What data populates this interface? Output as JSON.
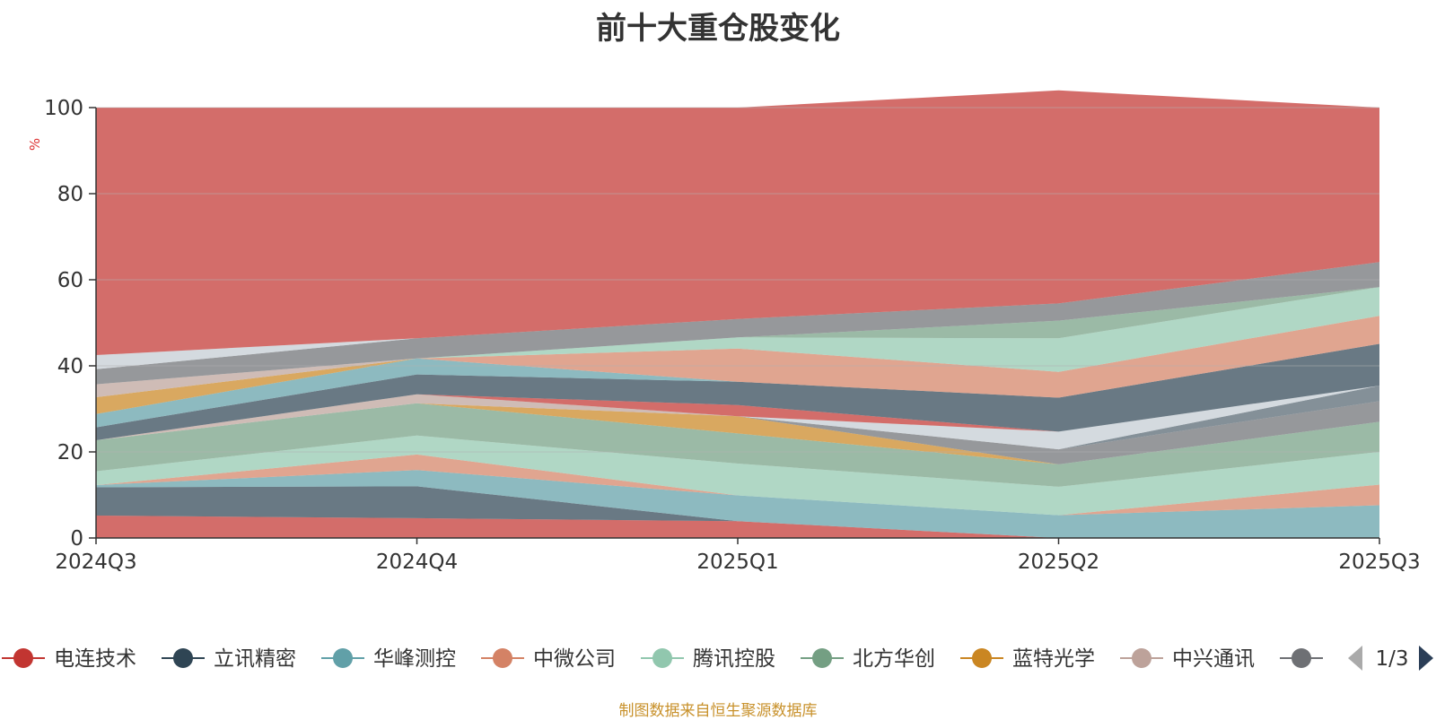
{
  "source_note": "制图数据来自恒生聚源数据库",
  "legend_page": "1/3",
  "colors": {
    "axis": "#333333",
    "grid": "#b0b0b0",
    "page_arrow_active": "#2b3e57",
    "page_arrow_inactive": "#aaaaaa",
    "source": "#c8912b",
    "unit": "#dd3333"
  },
  "chart_data": {
    "type": "area",
    "stacked": true,
    "title": "前十大重仓股变化",
    "ylabel": "%",
    "xlabel": "",
    "categories": [
      "2024Q3",
      "2024Q4",
      "2025Q1",
      "2025Q2",
      "2025Q3"
    ],
    "ylim": [
      0,
      100
    ],
    "yticks": [
      0,
      20,
      40,
      60,
      80,
      100
    ],
    "grid": true,
    "legend_position": "bottom",
    "series": [
      {
        "name": "电连技术",
        "color": "#c23531",
        "legend": true,
        "values": [
          5.2,
          4.6,
          3.9,
          0.0,
          0.0
        ]
      },
      {
        "name": "立讯精密",
        "color": "#2f4554",
        "legend": true,
        "values": [
          6.6,
          7.4,
          0.0,
          0.0,
          0.0
        ]
      },
      {
        "name": "华峰测控",
        "color": "#61a0a8",
        "legend": true,
        "values": [
          0.5,
          3.8,
          6.0,
          5.3,
          7.6
        ]
      },
      {
        "name": "中微公司",
        "color": "#d48265",
        "legend": true,
        "values": [
          0.0,
          3.6,
          0.0,
          0.0,
          4.8
        ]
      },
      {
        "name": "腾讯控股",
        "color": "#91c7ae",
        "legend": true,
        "values": [
          3.2,
          4.4,
          7.4,
          6.6,
          7.6
        ]
      },
      {
        "name": "北方华创",
        "color": "#749f83",
        "legend": true,
        "values": [
          7.2,
          7.5,
          7.0,
          5.2,
          7.0
        ]
      },
      {
        "name": "蓝特光学",
        "color": "#ca8622",
        "legend": true,
        "values": [
          0.0,
          0.0,
          4.0,
          0.0,
          0.0
        ]
      },
      {
        "name": "中兴通讯",
        "color": "#bda29a",
        "legend": true,
        "values": [
          0.0,
          2.1,
          0.0,
          0.0,
          0.0
        ]
      },
      {
        "name": "—",
        "color": "#6e7074",
        "legend": true,
        "values": [
          0.0,
          0.0,
          0.0,
          3.5,
          4.8
        ]
      },
      {
        "name": "—",
        "color": "#546570",
        "legend": false,
        "values": [
          0.0,
          0.0,
          0.0,
          0.0,
          3.6
        ]
      },
      {
        "name": "—",
        "color": "#c4ccd3",
        "legend": false,
        "values": [
          0.0,
          0.0,
          0.0,
          4.1,
          0.0
        ]
      },
      {
        "name": "—",
        "color": "#c23531",
        "legend": false,
        "values": [
          0.0,
          0.0,
          2.6,
          0.0,
          0.0
        ]
      },
      {
        "name": "—",
        "color": "#2f4554",
        "legend": false,
        "values": [
          3.0,
          4.6,
          5.4,
          7.9,
          9.7
        ]
      },
      {
        "name": "—",
        "color": "#61a0a8",
        "legend": false,
        "values": [
          3.1,
          3.7,
          0.0,
          0.0,
          0.0
        ]
      },
      {
        "name": "—",
        "color": "#d48265",
        "legend": false,
        "values": [
          0.0,
          0.0,
          7.7,
          6.0,
          6.5
        ]
      },
      {
        "name": "—",
        "color": "#ca8622",
        "legend": false,
        "values": [
          3.9,
          0.0,
          0.0,
          0.0,
          0.0
        ]
      },
      {
        "name": "—",
        "color": "#bda29a",
        "legend": false,
        "values": [
          3.0,
          0.0,
          0.0,
          0.0,
          0.0
        ]
      },
      {
        "name": "—",
        "color": "#91c7ae",
        "legend": false,
        "values": [
          0.0,
          0.0,
          2.6,
          7.8,
          6.7
        ]
      },
      {
        "name": "—",
        "color": "#749f83",
        "legend": false,
        "values": [
          0.0,
          0.0,
          0.0,
          4.1,
          0.0
        ]
      },
      {
        "name": "—",
        "color": "#6e7074",
        "legend": false,
        "values": [
          3.5,
          4.7,
          4.3,
          4.0,
          5.8
        ]
      },
      {
        "name": "—",
        "color": "#c4ccd3",
        "legend": false,
        "values": [
          3.3,
          0.0,
          0.0,
          0.0,
          0.0
        ]
      },
      {
        "name": "—",
        "color": "#c23531",
        "legend": false,
        "values": [
          57.5,
          53.6,
          49.1,
          49.5,
          35.9
        ]
      }
    ]
  }
}
